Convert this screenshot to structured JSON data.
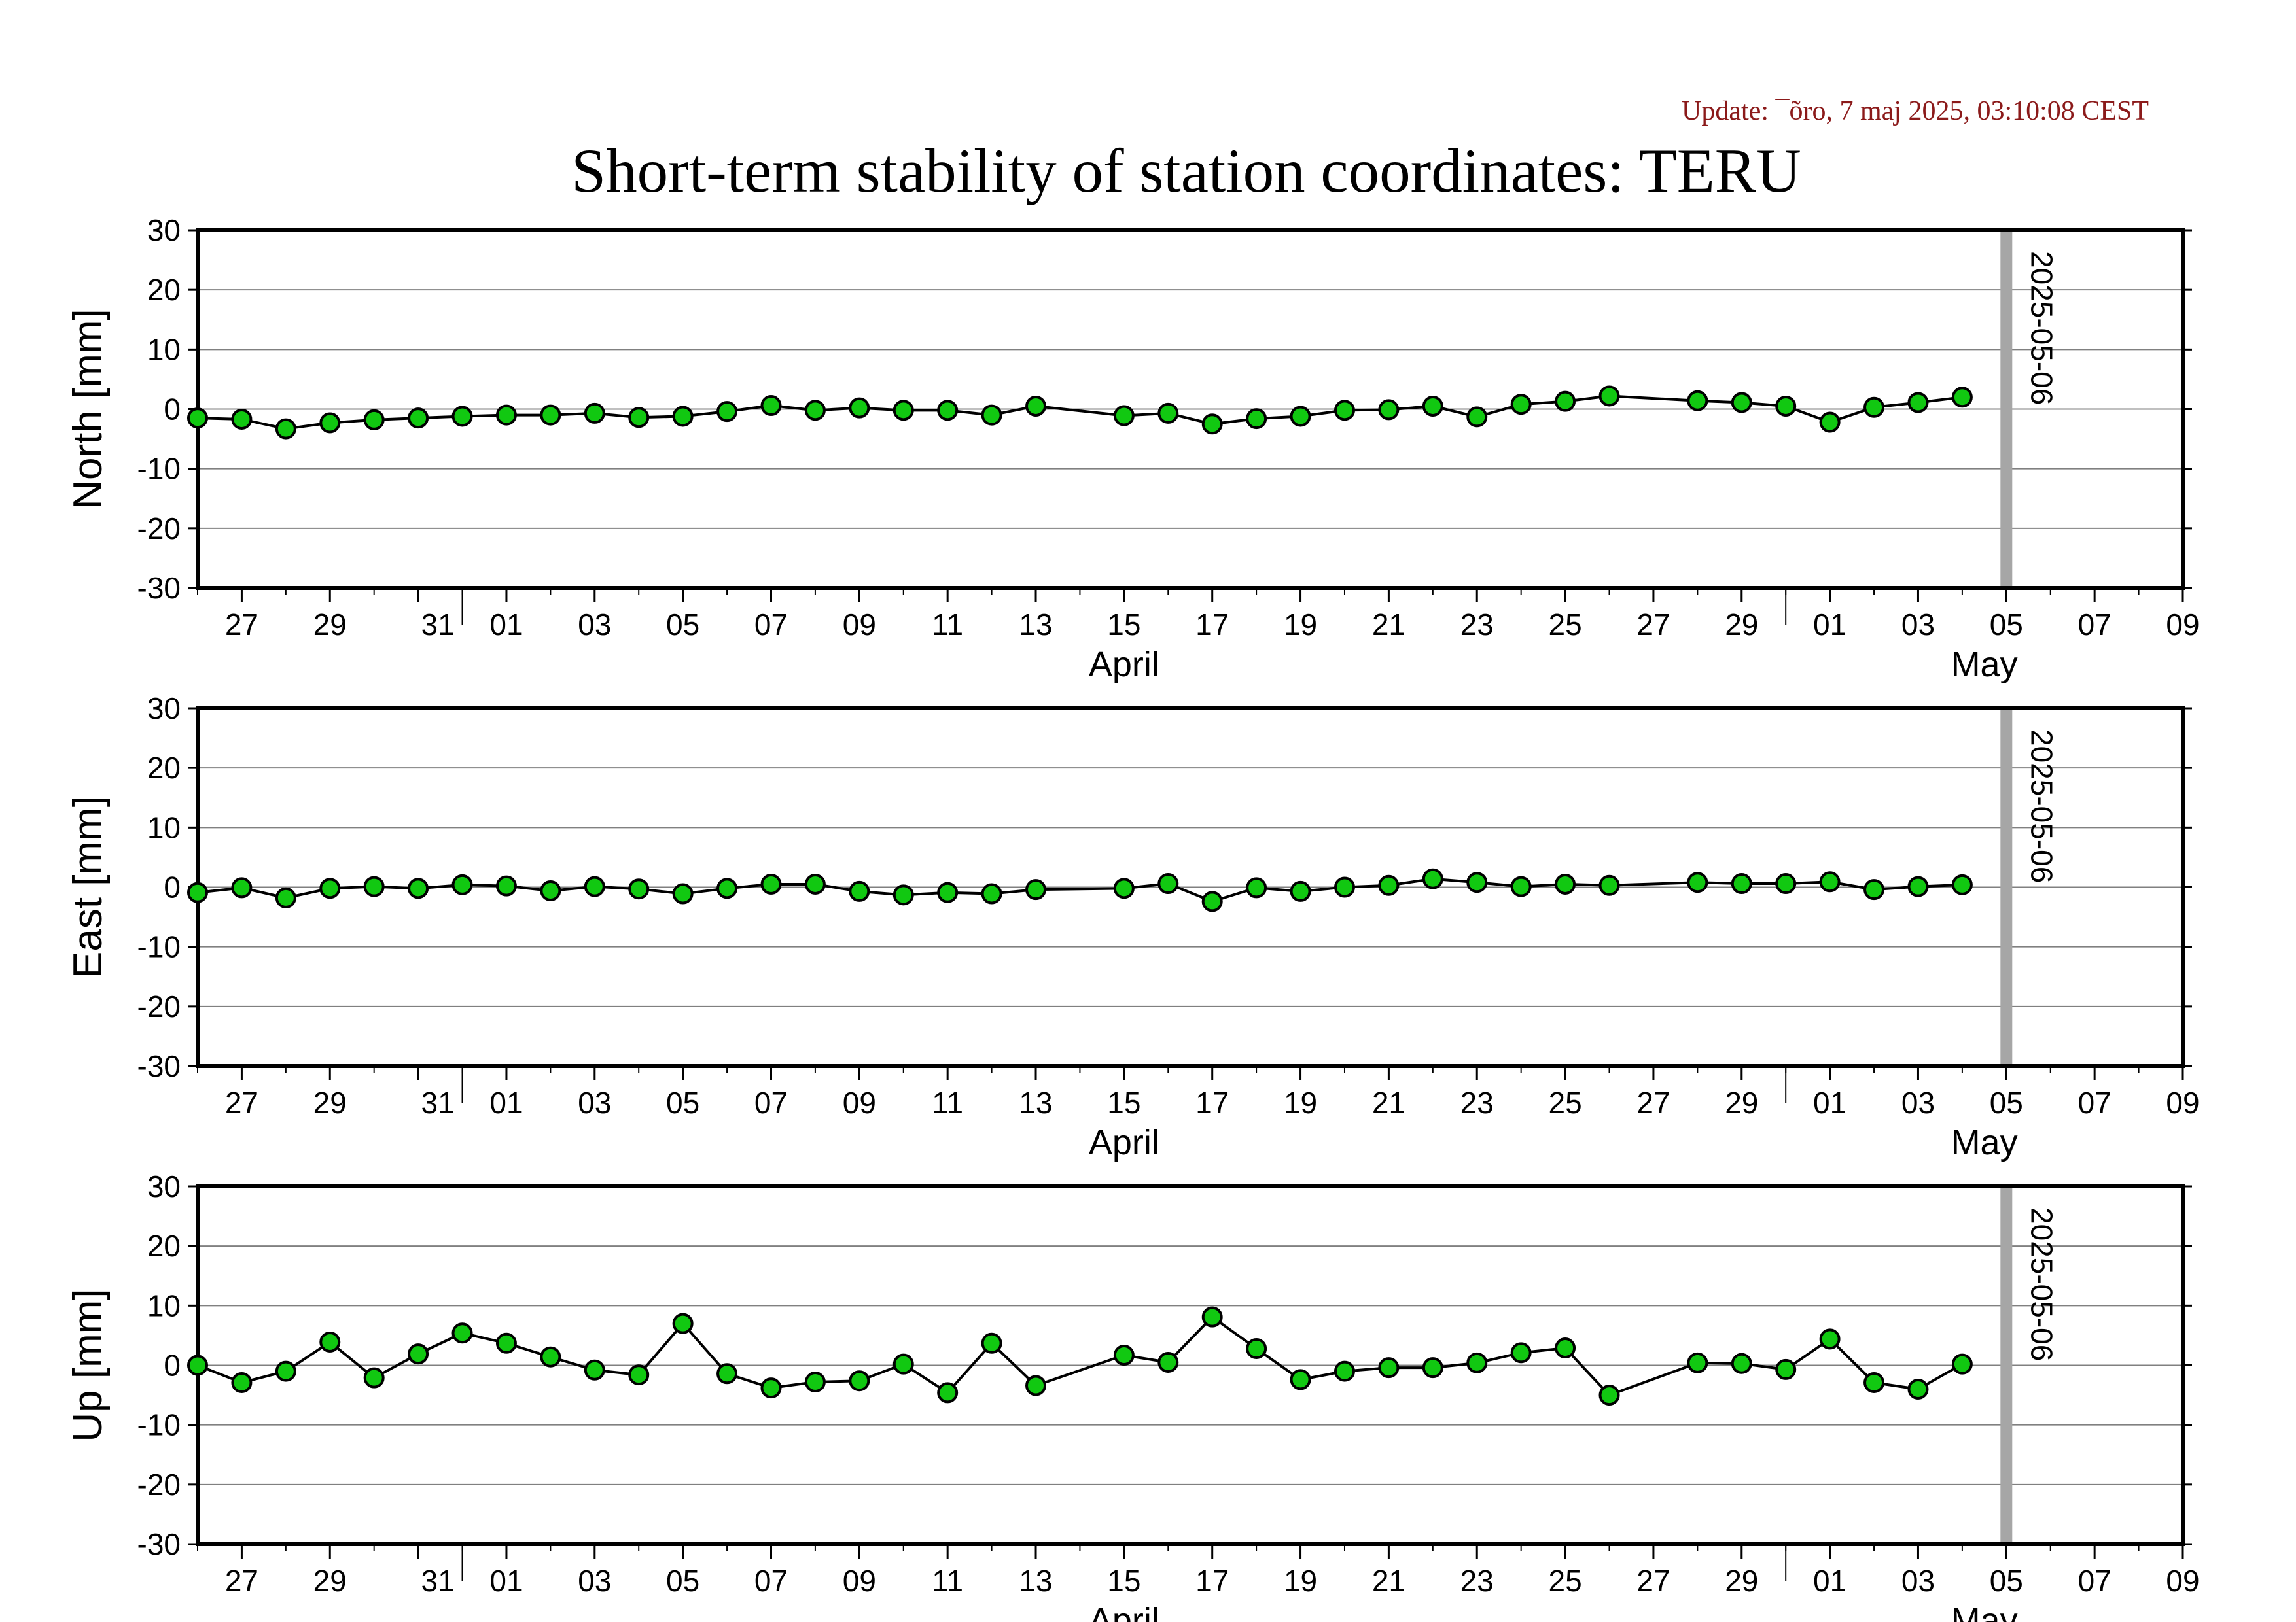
{
  "update_text": "Update: ¯õro, 7 maj 2025, 03:10:08 CEST",
  "chart_data": {
    "type": "line",
    "title": "Short-term stability of station coordinates: TERU",
    "x_unit": "date",
    "xlim": [
      "2025-03-26",
      "2025-05-10"
    ],
    "x_tick_labels": [
      "27",
      "29",
      "31",
      "01",
      "03",
      "05",
      "07",
      "09",
      "11",
      "13",
      "15",
      "17",
      "19",
      "21",
      "23",
      "25",
      "27",
      "29",
      "01",
      "03",
      "05",
      "07",
      "09"
    ],
    "month_labels": [
      "April",
      "May"
    ],
    "ylim": [
      -30,
      30
    ],
    "y_ticks": [
      30,
      20,
      10,
      0,
      -10,
      -20,
      -30
    ],
    "marker_line": "2025-05-06",
    "colors": {
      "marker_fill": "#11c811",
      "line": "#000000",
      "grid": "#808080",
      "marker_line": "#a6a6a6",
      "update": "#8b1a1a"
    },
    "panels": [
      {
        "ylabel": "North [mm]",
        "points": [
          [
            "2025-03-26",
            -1.5
          ],
          [
            "2025-03-27",
            -1.7
          ],
          [
            "2025-03-28",
            -3.3
          ],
          [
            "2025-03-29",
            -2.3
          ],
          [
            "2025-03-30",
            -1.8
          ],
          [
            "2025-03-31",
            -1.5
          ],
          [
            "2025-04-01",
            -1.2
          ],
          [
            "2025-04-02",
            -1.0
          ],
          [
            "2025-04-03",
            -1.0
          ],
          [
            "2025-04-04",
            -0.7
          ],
          [
            "2025-04-05",
            -1.4
          ],
          [
            "2025-04-06",
            -1.2
          ],
          [
            "2025-04-07",
            -0.4
          ],
          [
            "2025-04-08",
            0.6
          ],
          [
            "2025-04-09",
            -0.2
          ],
          [
            "2025-04-10",
            0.2
          ],
          [
            "2025-04-11",
            -0.2
          ],
          [
            "2025-04-12",
            -0.2
          ],
          [
            "2025-04-13",
            -1.0
          ],
          [
            "2025-04-14",
            0.5
          ],
          [
            "2025-04-16",
            -1.1
          ],
          [
            "2025-04-17",
            -0.7
          ],
          [
            "2025-04-18",
            -2.5
          ],
          [
            "2025-04-19",
            -1.6
          ],
          [
            "2025-04-20",
            -1.2
          ],
          [
            "2025-04-21",
            -0.2
          ],
          [
            "2025-04-22",
            -0.1
          ],
          [
            "2025-04-23",
            0.5
          ],
          [
            "2025-04-24",
            -1.3
          ],
          [
            "2025-04-25",
            0.8
          ],
          [
            "2025-04-26",
            1.3
          ],
          [
            "2025-04-27",
            2.2
          ],
          [
            "2025-04-29",
            1.4
          ],
          [
            "2025-04-30",
            1.1
          ],
          [
            "2025-05-01",
            0.5
          ],
          [
            "2025-05-02",
            -2.2
          ],
          [
            "2025-05-03",
            0.3
          ],
          [
            "2025-05-04",
            1.1
          ],
          [
            "2025-05-05",
            2.0
          ]
        ]
      },
      {
        "ylabel": "East [mm]",
        "points": [
          [
            "2025-03-26",
            -0.9
          ],
          [
            "2025-03-27",
            -0.1
          ],
          [
            "2025-03-28",
            -1.8
          ],
          [
            "2025-03-29",
            -0.2
          ],
          [
            "2025-03-30",
            0.1
          ],
          [
            "2025-03-31",
            -0.2
          ],
          [
            "2025-04-01",
            0.4
          ],
          [
            "2025-04-02",
            0.2
          ],
          [
            "2025-04-03",
            -0.6
          ],
          [
            "2025-04-04",
            0.1
          ],
          [
            "2025-04-05",
            -0.3
          ],
          [
            "2025-04-06",
            -1.1
          ],
          [
            "2025-04-07",
            -0.2
          ],
          [
            "2025-04-08",
            0.5
          ],
          [
            "2025-04-09",
            0.5
          ],
          [
            "2025-04-10",
            -0.7
          ],
          [
            "2025-04-11",
            -1.3
          ],
          [
            "2025-04-12",
            -0.9
          ],
          [
            "2025-04-13",
            -1.1
          ],
          [
            "2025-04-14",
            -0.4
          ],
          [
            "2025-04-16",
            -0.2
          ],
          [
            "2025-04-17",
            0.6
          ],
          [
            "2025-04-18",
            -2.4
          ],
          [
            "2025-04-19",
            -0.1
          ],
          [
            "2025-04-20",
            -0.7
          ],
          [
            "2025-04-21",
            0.0
          ],
          [
            "2025-04-22",
            0.3
          ],
          [
            "2025-04-23",
            1.4
          ],
          [
            "2025-04-24",
            0.8
          ],
          [
            "2025-04-25",
            0.1
          ],
          [
            "2025-04-26",
            0.5
          ],
          [
            "2025-04-27",
            0.3
          ],
          [
            "2025-04-29",
            0.8
          ],
          [
            "2025-04-30",
            0.6
          ],
          [
            "2025-05-01",
            0.6
          ],
          [
            "2025-05-02",
            0.9
          ],
          [
            "2025-05-03",
            -0.4
          ],
          [
            "2025-05-04",
            0.1
          ],
          [
            "2025-05-05",
            0.4
          ]
        ]
      },
      {
        "ylabel": "Up [mm]",
        "points": [
          [
            "2025-03-26",
            0.0
          ],
          [
            "2025-03-27",
            -2.9
          ],
          [
            "2025-03-28",
            -1.0
          ],
          [
            "2025-03-29",
            3.9
          ],
          [
            "2025-03-30",
            -2.1
          ],
          [
            "2025-03-31",
            1.9
          ],
          [
            "2025-04-01",
            5.4
          ],
          [
            "2025-04-02",
            3.7
          ],
          [
            "2025-04-03",
            1.4
          ],
          [
            "2025-04-04",
            -0.8
          ],
          [
            "2025-04-05",
            -1.6
          ],
          [
            "2025-04-06",
            7.0
          ],
          [
            "2025-04-07",
            -1.4
          ],
          [
            "2025-04-08",
            -3.8
          ],
          [
            "2025-04-09",
            -2.8
          ],
          [
            "2025-04-10",
            -2.6
          ],
          [
            "2025-04-11",
            0.2
          ],
          [
            "2025-04-12",
            -4.6
          ],
          [
            "2025-04-13",
            3.7
          ],
          [
            "2025-04-14",
            -3.4
          ],
          [
            "2025-04-16",
            1.7
          ],
          [
            "2025-04-17",
            0.5
          ],
          [
            "2025-04-18",
            8.1
          ],
          [
            "2025-04-19",
            2.8
          ],
          [
            "2025-04-20",
            -2.4
          ],
          [
            "2025-04-21",
            -1.0
          ],
          [
            "2025-04-22",
            -0.4
          ],
          [
            "2025-04-23",
            -0.4
          ],
          [
            "2025-04-24",
            0.4
          ],
          [
            "2025-04-25",
            2.1
          ],
          [
            "2025-04-26",
            2.9
          ],
          [
            "2025-04-27",
            -5.0
          ],
          [
            "2025-04-29",
            0.4
          ],
          [
            "2025-04-30",
            0.3
          ],
          [
            "2025-05-01",
            -0.7
          ],
          [
            "2025-05-02",
            4.4
          ],
          [
            "2025-05-03",
            -2.9
          ],
          [
            "2025-05-04",
            -4.0
          ],
          [
            "2025-05-05",
            0.2
          ]
        ]
      }
    ]
  }
}
